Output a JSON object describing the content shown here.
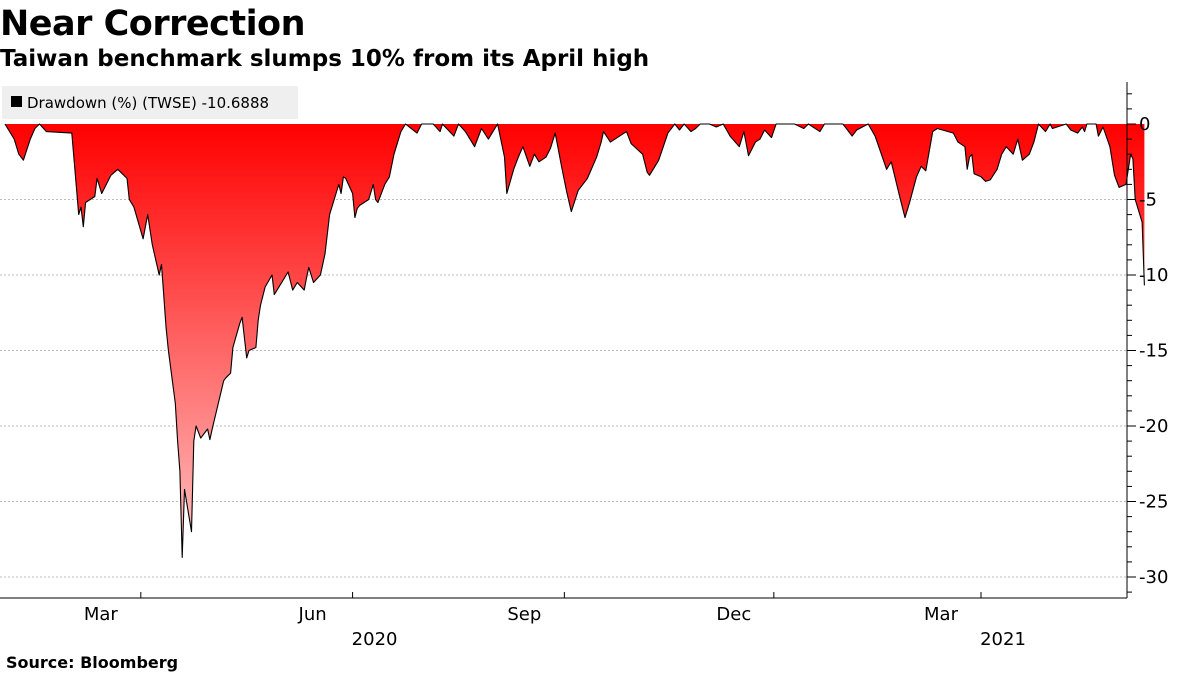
{
  "header": {
    "title": "Near Correction",
    "subtitle": "Taiwan benchmark slumps 10% from its April high"
  },
  "footer": {
    "source": "Source: Bloomberg"
  },
  "colors": {
    "fill_top": "#ff0000",
    "fill_bottom": "#ffc4c4",
    "line": "#000000",
    "grid": "#bdbdbd",
    "legend_bg": "#eeeeee"
  },
  "chart_data": {
    "type": "area",
    "title": "Near Correction",
    "subtitle": "Taiwan benchmark slumps 10% from its April high",
    "legend": {
      "placement": "top-left",
      "entries": [
        {
          "label": "Drawdown (%) (TWSE) -10.6888"
        }
      ]
    },
    "ylim": [
      -31,
      2
    ],
    "yticks": [
      0,
      -5,
      -10,
      -15,
      -20,
      -25,
      -30
    ],
    "ytick_labels": [
      "0",
      "-5",
      "-10",
      "-15",
      "-20",
      "-25",
      "-30"
    ],
    "xlim": [
      "2020-01-02",
      "2021-04-23"
    ],
    "xticks": [
      {
        "date": "2020-03-01",
        "label": "Mar"
      },
      {
        "date": "2020-06-01",
        "label": "Jun"
      },
      {
        "date": "2020-09-01",
        "label": "Sep"
      },
      {
        "date": "2020-12-01",
        "label": "Dec"
      },
      {
        "date": "2021-03-01",
        "label": "Mar"
      }
    ],
    "year_labels": [
      {
        "date": "2020-06-01",
        "label": "2020"
      },
      {
        "date": "2021-03-01",
        "label": "2021"
      }
    ],
    "grid": "horizontal dotted",
    "series": [
      {
        "name": "Drawdown (%) (TWSE)",
        "points": [
          [
            "2020-01-02",
            0
          ],
          [
            "2020-01-06",
            -1.0
          ],
          [
            "2020-01-08",
            -2.0
          ],
          [
            "2020-01-10",
            -2.4
          ],
          [
            "2020-01-13",
            -1.0
          ],
          [
            "2020-01-15",
            -0.3
          ],
          [
            "2020-01-17",
            0
          ],
          [
            "2020-01-20",
            -0.5
          ],
          [
            "2020-01-31",
            -0.6
          ],
          [
            "2020-02-03",
            -6.0
          ],
          [
            "2020-02-04",
            -5.5
          ],
          [
            "2020-02-05",
            -6.8
          ],
          [
            "2020-02-06",
            -5.2
          ],
          [
            "2020-02-10",
            -4.8
          ],
          [
            "2020-02-11",
            -3.6
          ],
          [
            "2020-02-13",
            -4.6
          ],
          [
            "2020-02-17",
            -3.4
          ],
          [
            "2020-02-20",
            -3.0
          ],
          [
            "2020-02-24",
            -3.6
          ],
          [
            "2020-02-25",
            -5.0
          ],
          [
            "2020-02-27",
            -5.5
          ],
          [
            "2020-03-02",
            -7.6
          ],
          [
            "2020-03-04",
            -6.0
          ],
          [
            "2020-03-06",
            -8.0
          ],
          [
            "2020-03-09",
            -10.0
          ],
          [
            "2020-03-10",
            -9.3
          ],
          [
            "2020-03-12",
            -13.5
          ],
          [
            "2020-03-13",
            -15.0
          ],
          [
            "2020-03-16",
            -18.5
          ],
          [
            "2020-03-17",
            -21.0
          ],
          [
            "2020-03-18",
            -23.0
          ],
          [
            "2020-03-19",
            -28.7
          ],
          [
            "2020-03-20",
            -24.2
          ],
          [
            "2020-03-23",
            -27.0
          ],
          [
            "2020-03-24",
            -21.0
          ],
          [
            "2020-03-25",
            -20.0
          ],
          [
            "2020-03-27",
            -20.8
          ],
          [
            "2020-03-30",
            -20.2
          ],
          [
            "2020-03-31",
            -20.9
          ],
          [
            "2020-04-01",
            -20.2
          ],
          [
            "2020-04-06",
            -17.0
          ],
          [
            "2020-04-07",
            -16.8
          ],
          [
            "2020-04-09",
            -16.5
          ],
          [
            "2020-04-10",
            -14.8
          ],
          [
            "2020-04-13",
            -13.2
          ],
          [
            "2020-04-14",
            -12.8
          ],
          [
            "2020-04-16",
            -15.5
          ],
          [
            "2020-04-17",
            -15.0
          ],
          [
            "2020-04-20",
            -14.8
          ],
          [
            "2020-04-21",
            -13.0
          ],
          [
            "2020-04-22",
            -12.0
          ],
          [
            "2020-04-24",
            -10.8
          ],
          [
            "2020-04-27",
            -10.0
          ],
          [
            "2020-04-28",
            -11.3
          ],
          [
            "2020-04-30",
            -10.8
          ],
          [
            "2020-05-04",
            -9.8
          ],
          [
            "2020-05-06",
            -11.0
          ],
          [
            "2020-05-08",
            -10.5
          ],
          [
            "2020-05-11",
            -11.0
          ],
          [
            "2020-05-12",
            -10.2
          ],
          [
            "2020-05-13",
            -9.5
          ],
          [
            "2020-05-15",
            -10.5
          ],
          [
            "2020-05-18",
            -10.0
          ],
          [
            "2020-05-20",
            -8.6
          ],
          [
            "2020-05-22",
            -6.0
          ],
          [
            "2020-05-26",
            -4.0
          ],
          [
            "2020-05-27",
            -4.6
          ],
          [
            "2020-05-28",
            -3.5
          ],
          [
            "2020-05-29",
            -3.6
          ],
          [
            "2020-06-01",
            -4.6
          ],
          [
            "2020-06-02",
            -6.2
          ],
          [
            "2020-06-03",
            -5.6
          ],
          [
            "2020-06-04",
            -5.4
          ],
          [
            "2020-06-08",
            -5.0
          ],
          [
            "2020-06-10",
            -4.0
          ],
          [
            "2020-06-11",
            -5.0
          ],
          [
            "2020-06-12",
            -5.2
          ],
          [
            "2020-06-15",
            -4.0
          ],
          [
            "2020-06-17",
            -3.5
          ],
          [
            "2020-06-19",
            -2.0
          ],
          [
            "2020-06-22",
            -0.5
          ],
          [
            "2020-06-24",
            0
          ],
          [
            "2020-06-29",
            -0.6
          ],
          [
            "2020-07-01",
            0
          ],
          [
            "2020-07-06",
            0
          ],
          [
            "2020-07-09",
            -0.5
          ],
          [
            "2020-07-10",
            0
          ],
          [
            "2020-07-15",
            -0.8
          ],
          [
            "2020-07-17",
            0
          ],
          [
            "2020-07-20",
            -0.5
          ],
          [
            "2020-07-22",
            -1.0
          ],
          [
            "2020-07-24",
            -1.5
          ],
          [
            "2020-07-27",
            -0.3
          ],
          [
            "2020-07-30",
            -1.0
          ],
          [
            "2020-08-03",
            0
          ],
          [
            "2020-08-06",
            -2.2
          ],
          [
            "2020-08-07",
            -4.6
          ],
          [
            "2020-08-10",
            -3.0
          ],
          [
            "2020-08-12",
            -2.2
          ],
          [
            "2020-08-14",
            -1.5
          ],
          [
            "2020-08-17",
            -2.8
          ],
          [
            "2020-08-19",
            -2.0
          ],
          [
            "2020-08-21",
            -2.5
          ],
          [
            "2020-08-24",
            -2.2
          ],
          [
            "2020-08-26",
            -1.6
          ],
          [
            "2020-08-28",
            -0.6
          ],
          [
            "2020-08-31",
            -3.0
          ],
          [
            "2020-09-02",
            -4.5
          ],
          [
            "2020-09-04",
            -5.8
          ],
          [
            "2020-09-07",
            -4.4
          ],
          [
            "2020-09-09",
            -4.0
          ],
          [
            "2020-09-11",
            -3.6
          ],
          [
            "2020-09-15",
            -2.2
          ],
          [
            "2020-09-17",
            -1.2
          ],
          [
            "2020-09-18",
            -0.5
          ],
          [
            "2020-09-21",
            -1.2
          ],
          [
            "2020-09-23",
            -1.0
          ],
          [
            "2020-09-25",
            -0.8
          ],
          [
            "2020-09-28",
            -0.5
          ],
          [
            "2020-09-30",
            -1.3
          ],
          [
            "2020-10-05",
            -2.0
          ],
          [
            "2020-10-07",
            -3.2
          ],
          [
            "2020-10-08",
            -3.4
          ],
          [
            "2020-10-12",
            -2.4
          ],
          [
            "2020-10-14",
            -1.5
          ],
          [
            "2020-10-16",
            -0.6
          ],
          [
            "2020-10-19",
            0
          ],
          [
            "2020-10-21",
            -0.4
          ],
          [
            "2020-10-23",
            0
          ],
          [
            "2020-10-26",
            -0.5
          ],
          [
            "2020-10-28",
            -0.3
          ],
          [
            "2020-10-30",
            0
          ],
          [
            "2020-11-03",
            0
          ],
          [
            "2020-11-06",
            -0.2
          ],
          [
            "2020-11-09",
            0
          ],
          [
            "2020-11-12",
            -0.8
          ],
          [
            "2020-11-16",
            -1.5
          ],
          [
            "2020-11-18",
            -0.5
          ],
          [
            "2020-11-20",
            -2.1
          ],
          [
            "2020-11-23",
            -1.2
          ],
          [
            "2020-11-25",
            -1.0
          ],
          [
            "2020-11-27",
            -0.4
          ],
          [
            "2020-11-30",
            -0.9
          ],
          [
            "2020-12-02",
            0
          ],
          [
            "2020-12-10",
            0
          ],
          [
            "2020-12-14",
            -0.3
          ],
          [
            "2020-12-16",
            0
          ],
          [
            "2020-12-21",
            -0.5
          ],
          [
            "2020-12-23",
            0
          ],
          [
            "2020-12-31",
            0
          ],
          [
            "2021-01-04",
            -0.8
          ],
          [
            "2021-01-06",
            -0.4
          ],
          [
            "2021-01-11",
            0
          ],
          [
            "2021-01-14",
            -0.8
          ],
          [
            "2021-01-19",
            -3.0
          ],
          [
            "2021-01-21",
            -2.5
          ],
          [
            "2021-01-25",
            -5.0
          ],
          [
            "2021-01-27",
            -6.2
          ],
          [
            "2021-01-29",
            -5.2
          ],
          [
            "2021-02-01",
            -3.5
          ],
          [
            "2021-02-03",
            -2.8
          ],
          [
            "2021-02-05",
            -3.1
          ],
          [
            "2021-02-08",
            -0.5
          ],
          [
            "2021-02-10",
            -0.3
          ],
          [
            "2021-02-17",
            -0.6
          ],
          [
            "2021-02-19",
            -1.2
          ],
          [
            "2021-02-22",
            -1.5
          ],
          [
            "2021-02-23",
            -3.0
          ],
          [
            "2021-02-24",
            -2.2
          ],
          [
            "2021-02-25",
            -2.0
          ],
          [
            "2021-02-26",
            -3.3
          ],
          [
            "2021-03-01",
            -3.5
          ],
          [
            "2021-03-03",
            -3.8
          ],
          [
            "2021-03-05",
            -3.7
          ],
          [
            "2021-03-08",
            -3.0
          ],
          [
            "2021-03-10",
            -2.0
          ],
          [
            "2021-03-12",
            -1.5
          ],
          [
            "2021-03-15",
            -2.0
          ],
          [
            "2021-03-17",
            -1.0
          ],
          [
            "2021-03-19",
            -2.4
          ],
          [
            "2021-03-22",
            -2.0
          ],
          [
            "2021-03-24",
            -1.2
          ],
          [
            "2021-03-26",
            0
          ],
          [
            "2021-03-29",
            -0.5
          ],
          [
            "2021-03-31",
            0
          ],
          [
            "2021-04-01",
            -0.3
          ],
          [
            "2021-04-07",
            0
          ],
          [
            "2021-04-09",
            -0.4
          ],
          [
            "2021-04-12",
            -0.6
          ],
          [
            "2021-04-14",
            -0.2
          ],
          [
            "2021-04-15",
            -0.5
          ],
          [
            "2021-04-16",
            0
          ],
          [
            "2021-04-20",
            0
          ],
          [
            "2021-04-21",
            -0.8
          ],
          [
            "2021-04-22",
            -0.5
          ],
          [
            "2021-04-23",
            -0.2
          ],
          [
            "2021-04-26",
            -1.5
          ],
          [
            "2021-04-28",
            -3.4
          ],
          [
            "2021-04-30",
            -4.2
          ],
          [
            "2021-05-03",
            -4.0
          ],
          [
            "2021-05-04",
            -3.0
          ],
          [
            "2021-05-05",
            -2.0
          ],
          [
            "2021-05-06",
            -2.3
          ],
          [
            "2021-05-07",
            -5.0
          ],
          [
            "2021-05-10",
            -6.5
          ],
          [
            "2021-05-11",
            -10.6888
          ]
        ]
      }
    ]
  }
}
